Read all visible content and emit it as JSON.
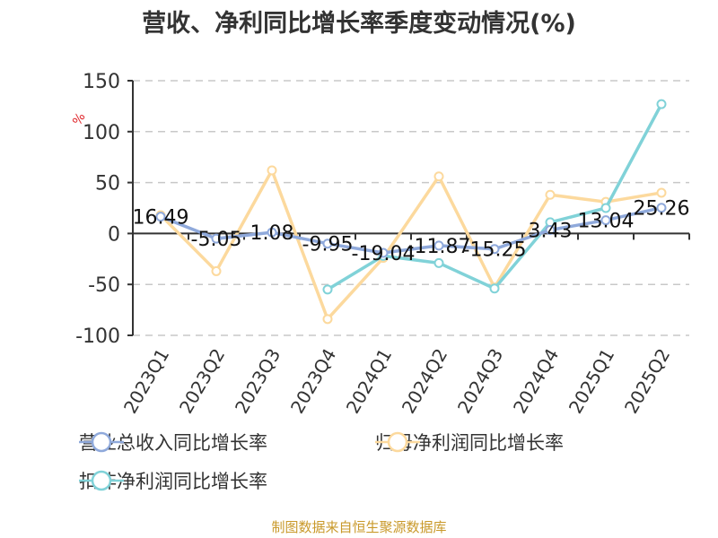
{
  "title": "营收、净利同比增长率季度变动情况(%)",
  "y_unit": "%",
  "footer": "制图数据来自恒生聚源数据库",
  "legend": [
    {
      "label": "营业总收入同比增长率",
      "color": "#8fa9db"
    },
    {
      "label": "归母净利润同比增长率",
      "color": "#fcd99d"
    },
    {
      "label": "扣非净利润同比增长率",
      "color": "#80d2d8"
    }
  ],
  "chart_data": {
    "type": "line",
    "title": "营收、净利同比增长率季度变动情况(%)",
    "xlabel": "",
    "ylabel": "%",
    "ylim": [
      -100,
      150
    ],
    "yticks": [
      150,
      100,
      50,
      0,
      -50,
      -100
    ],
    "grid": true,
    "legend_position": "bottom",
    "categories": [
      "2023Q1",
      "2023Q2",
      "2023Q3",
      "2023Q4",
      "2024Q1",
      "2024Q2",
      "2024Q3",
      "2024Q4",
      "2025Q1",
      "2025Q2"
    ],
    "series": [
      {
        "name": "营业总收入同比增长率",
        "color": "#8fa9db",
        "values": [
          16.49,
          -5.05,
          1.08,
          -9.95,
          -19.04,
          -11.87,
          -15.25,
          3.43,
          13.04,
          25.26
        ],
        "labels_shown": true
      },
      {
        "name": "归母净利润同比增长率",
        "color": "#fcd99d",
        "values": [
          18,
          -37,
          62,
          -84,
          -24,
          56,
          -53,
          38,
          31,
          40
        ],
        "labels_shown": false
      },
      {
        "name": "扣非净利润同比增长率",
        "color": "#80d2d8",
        "values": [
          null,
          null,
          null,
          -55,
          -22,
          -29,
          -54,
          11,
          25,
          127
        ],
        "labels_shown": false
      }
    ]
  }
}
